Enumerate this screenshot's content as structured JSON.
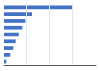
{
  "chart_data": {
    "type": "bar",
    "orientation": "horizontal",
    "categories": [
      null,
      null,
      null,
      null,
      null,
      null,
      null,
      null,
      null
    ],
    "values": [
      17500,
      7200,
      5500,
      4700,
      3800,
      3000,
      2400,
      1600,
      600
    ],
    "color": "#4472c4",
    "xlim": [
      0,
      23625
    ],
    "xticks": [
      5775,
      11550,
      17500
    ],
    "grid": true,
    "tick_labels": false
  }
}
